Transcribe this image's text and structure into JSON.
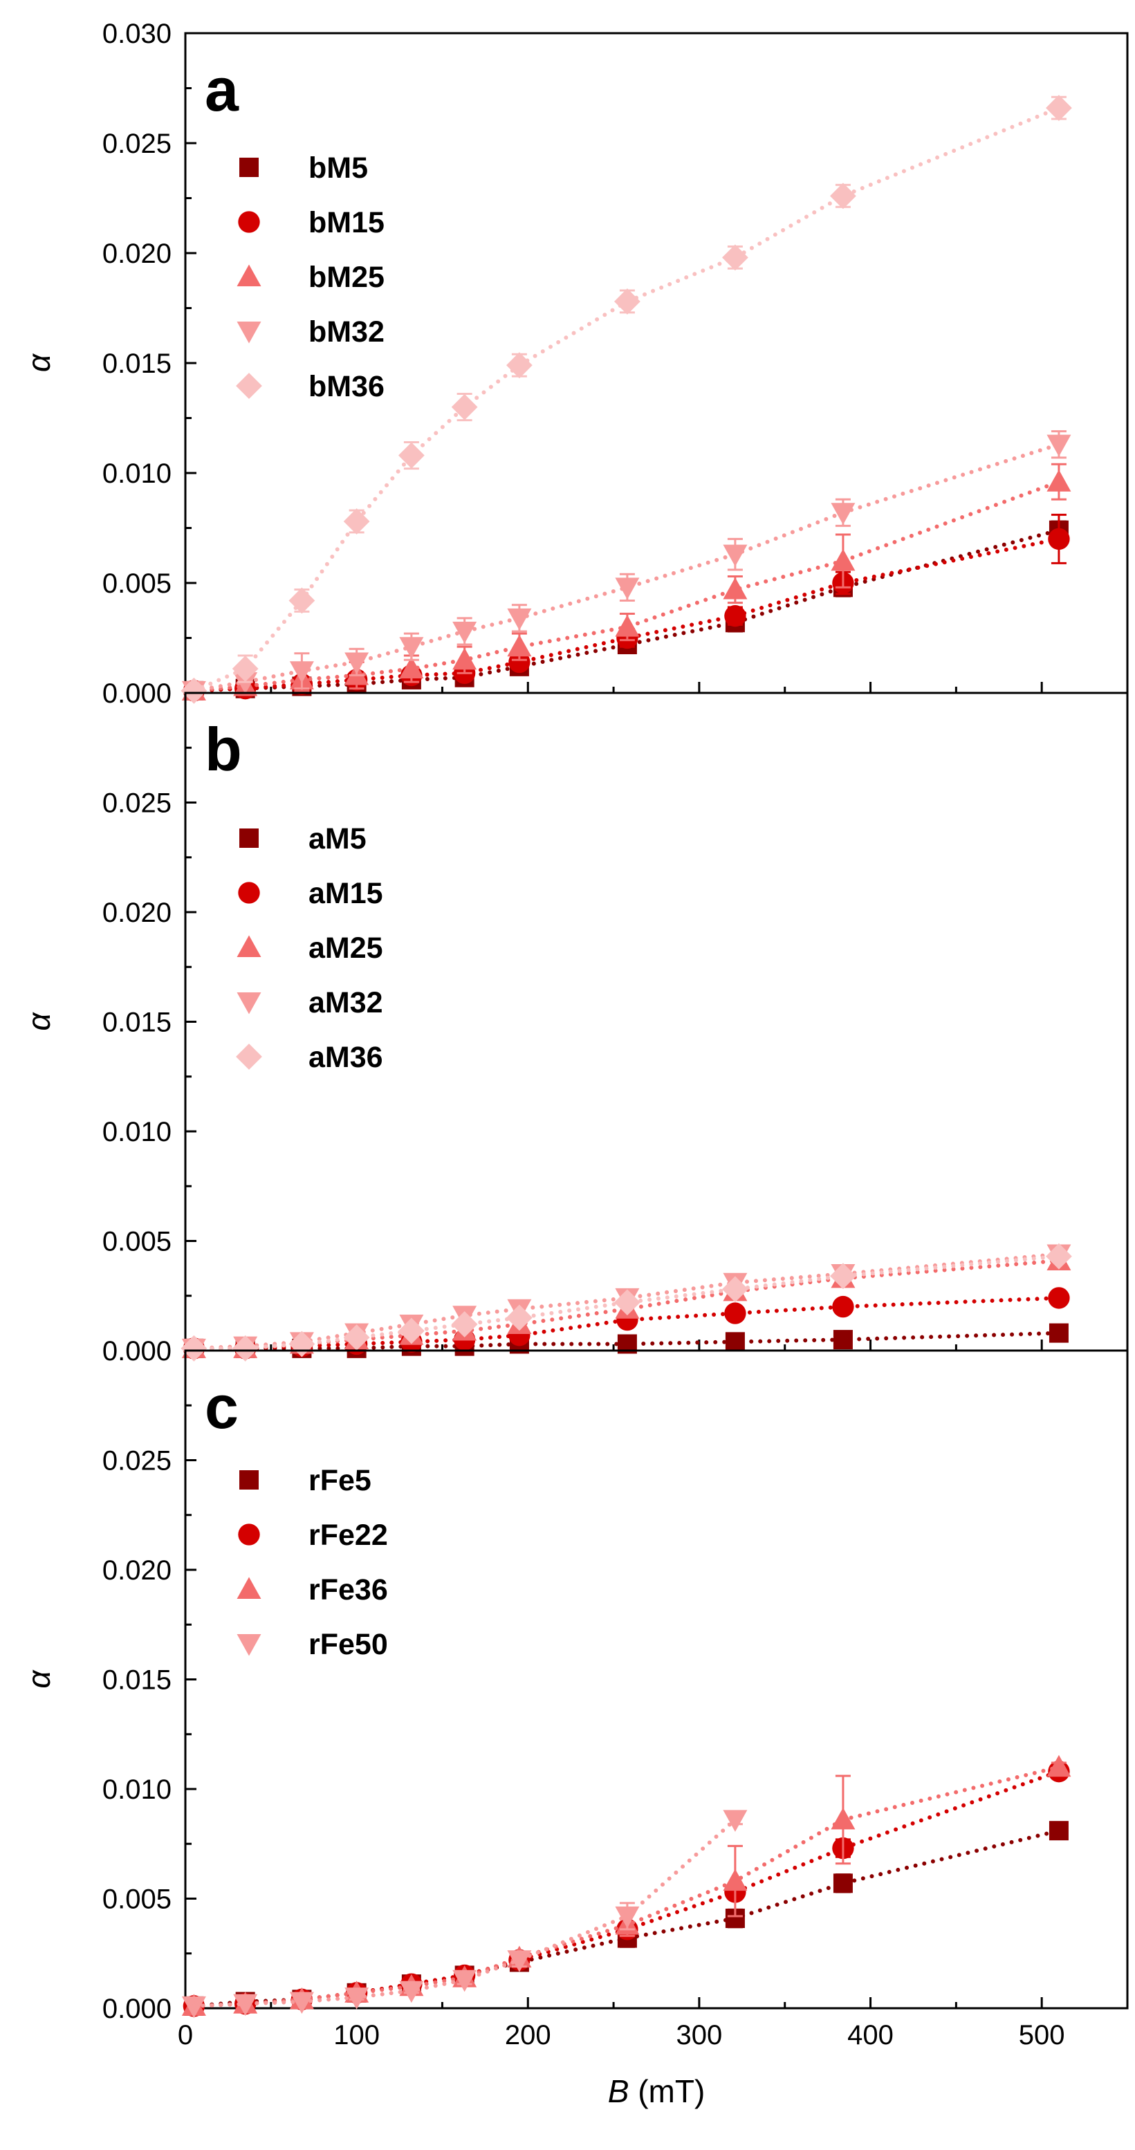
{
  "figure": {
    "xlabel_italic": "B",
    "xlabel_unit": " (mT)",
    "ylabel": "α",
    "xlim": [
      0,
      550
    ],
    "ylim": [
      0,
      0.03
    ],
    "x_ticks": [
      0,
      100,
      200,
      300,
      400,
      500
    ],
    "x_tick_labels": [
      "0",
      "100",
      "200",
      "300",
      "400",
      "500"
    ],
    "y_ticks": [
      0,
      0.005,
      0.01,
      0.015,
      0.02,
      0.025,
      0.03
    ],
    "y_tick_labels": [
      "0.000",
      "0.005",
      "0.010",
      "0.015",
      "0.020",
      "0.025",
      "0.030"
    ]
  },
  "colors": {
    "dark_red": "#8b0000",
    "red": "#d40000",
    "salmon": "#f36b6b",
    "pink": "#f79a9a",
    "light_pink": "#f9c0c0"
  },
  "chart_data": [
    {
      "type": "scatter",
      "panel_label": "a",
      "title": "",
      "xlabel": "",
      "ylabel": "α",
      "show_x_tick_labels": false,
      "show_top_y_tick": true,
      "series": [
        {
          "name": "bM5",
          "marker": "square",
          "color": "#8b0000",
          "x": [
            5,
            35,
            68,
            100,
            132,
            163,
            195,
            258,
            321,
            384,
            510
          ],
          "y": [
            0.0001,
            0.0002,
            0.0003,
            0.0004,
            0.0006,
            0.0007,
            0.0012,
            0.0022,
            0.0032,
            0.0048,
            0.0074
          ],
          "err": [
            0.0001,
            0.0001,
            0.0002,
            0.0002,
            0.0003,
            0.0003,
            0.0003,
            0.0003,
            0.0004,
            0.0004,
            0.0004
          ]
        },
        {
          "name": "bM15",
          "marker": "circle",
          "color": "#d40000",
          "x": [
            5,
            35,
            68,
            100,
            132,
            163,
            195,
            258,
            321,
            384,
            510
          ],
          "y": [
            0.0001,
            0.0002,
            0.0004,
            0.0006,
            0.0008,
            0.0009,
            0.0014,
            0.0025,
            0.0035,
            0.005,
            0.007
          ],
          "err": [
            0.0001,
            0.0002,
            0.0002,
            0.0002,
            0.0003,
            0.0003,
            0.0003,
            0.0004,
            0.0004,
            0.0005,
            0.0011
          ]
        },
        {
          "name": "bM25",
          "marker": "triangle-up",
          "color": "#f36b6b",
          "x": [
            5,
            35,
            68,
            100,
            132,
            163,
            195,
            258,
            321,
            384,
            510
          ],
          "y": [
            0.0001,
            0.0003,
            0.0006,
            0.0008,
            0.0011,
            0.0015,
            0.0021,
            0.003,
            0.0047,
            0.006,
            0.0096
          ],
          "err": [
            0.0001,
            0.0003,
            0.0005,
            0.0006,
            0.0006,
            0.0006,
            0.0006,
            0.0006,
            0.0006,
            0.0012,
            0.0008
          ]
        },
        {
          "name": "bM32",
          "marker": "triangle-down",
          "color": "#f79a9a",
          "x": [
            5,
            35,
            68,
            100,
            132,
            163,
            195,
            258,
            321,
            384,
            510
          ],
          "y": [
            0.0001,
            0.0005,
            0.001,
            0.0014,
            0.0021,
            0.0028,
            0.0034,
            0.0048,
            0.0063,
            0.0082,
            0.0113
          ],
          "err": [
            0.0001,
            0.0005,
            0.0008,
            0.0006,
            0.0006,
            0.0006,
            0.0006,
            0.0006,
            0.0007,
            0.0006,
            0.0006
          ]
        },
        {
          "name": "bM36",
          "marker": "diamond",
          "color": "#f9c0c0",
          "x": [
            5,
            35,
            68,
            100,
            132,
            163,
            195,
            258,
            321,
            384,
            510
          ],
          "y": [
            0.0001,
            0.0011,
            0.0042,
            0.0078,
            0.0108,
            0.013,
            0.0149,
            0.0178,
            0.0198,
            0.0226,
            0.0266
          ],
          "err": [
            0.0001,
            0.0006,
            0.0005,
            0.0005,
            0.0006,
            0.0006,
            0.0005,
            0.0005,
            0.0005,
            0.0005,
            0.0005
          ]
        }
      ]
    },
    {
      "type": "scatter",
      "panel_label": "b",
      "title": "",
      "xlabel": "",
      "ylabel": "α",
      "show_x_tick_labels": false,
      "show_top_y_tick": false,
      "series": [
        {
          "name": "aM5",
          "marker": "square",
          "color": "#8b0000",
          "x": [
            5,
            35,
            68,
            100,
            132,
            163,
            195,
            258,
            321,
            384,
            510
          ],
          "y": [
            0.0001,
            0.0001,
            0.0001,
            0.0001,
            0.0002,
            0.0002,
            0.0003,
            0.0003,
            0.0004,
            0.0005,
            0.0008
          ],
          "err": [
            0,
            0,
            0,
            0,
            0,
            0,
            0,
            0,
            0,
            0,
            0
          ]
        },
        {
          "name": "aM15",
          "marker": "circle",
          "color": "#d40000",
          "x": [
            5,
            35,
            68,
            100,
            132,
            163,
            195,
            258,
            321,
            384,
            510
          ],
          "y": [
            0.0001,
            0.0001,
            0.0002,
            0.0003,
            0.0004,
            0.0005,
            0.0007,
            0.0014,
            0.0017,
            0.002,
            0.0024
          ],
          "err": [
            0,
            0,
            0,
            0,
            0,
            0,
            0,
            0,
            0,
            0,
            0
          ]
        },
        {
          "name": "aM25",
          "marker": "triangle-up",
          "color": "#f36b6b",
          "x": [
            5,
            35,
            68,
            100,
            132,
            163,
            195,
            258,
            321,
            384,
            510
          ],
          "y": [
            0.0001,
            0.0001,
            0.0003,
            0.0005,
            0.0007,
            0.0009,
            0.0012,
            0.0019,
            0.0027,
            0.0033,
            0.0041
          ],
          "err": [
            0,
            0,
            0,
            0.0002,
            0.0002,
            0.0002,
            0.0002,
            0.0002,
            0.0002,
            0.0002,
            0.0002
          ]
        },
        {
          "name": "aM32",
          "marker": "triangle-down",
          "color": "#f79a9a",
          "x": [
            5,
            35,
            68,
            100,
            132,
            163,
            195,
            258,
            321,
            384,
            510
          ],
          "y": [
            0.0001,
            0.0002,
            0.0004,
            0.0008,
            0.0012,
            0.0016,
            0.0019,
            0.0024,
            0.0031,
            0.0035,
            0.0044
          ],
          "err": [
            0,
            0,
            0.0002,
            0.0002,
            0.0002,
            0.0002,
            0.0002,
            0.0002,
            0.0003,
            0.0003,
            0.0003
          ]
        },
        {
          "name": "aM36",
          "marker": "diamond",
          "color": "#f9c0c0",
          "x": [
            5,
            35,
            68,
            100,
            132,
            163,
            195,
            258,
            321,
            384,
            510
          ],
          "y": [
            0.0001,
            0.0001,
            0.0003,
            0.0006,
            0.0009,
            0.0012,
            0.0015,
            0.0022,
            0.0028,
            0.0034,
            0.0043
          ],
          "err": [
            0,
            0,
            0.0002,
            0.0002,
            0.0002,
            0.0002,
            0.0002,
            0.0002,
            0.0002,
            0.0002,
            0.0002
          ]
        }
      ]
    },
    {
      "type": "scatter",
      "panel_label": "c",
      "title": "",
      "xlabel": "B (mT)",
      "ylabel": "α",
      "show_x_tick_labels": true,
      "show_top_y_tick": false,
      "series": [
        {
          "name": "rFe5",
          "marker": "square",
          "color": "#8b0000",
          "x": [
            5,
            35,
            68,
            100,
            132,
            163,
            195,
            258,
            321,
            384,
            510
          ],
          "y": [
            0.0001,
            0.0003,
            0.0004,
            0.0007,
            0.0011,
            0.0015,
            0.0021,
            0.0032,
            0.0041,
            0.0057,
            0.0081
          ],
          "err": [
            0,
            0,
            0.0001,
            0.0002,
            0.0002,
            0.0002,
            0.0003,
            0.0004,
            0.0004,
            0.0004,
            0.0002
          ]
        },
        {
          "name": "rFe22",
          "marker": "circle",
          "color": "#d40000",
          "x": [
            5,
            35,
            68,
            100,
            132,
            163,
            195,
            258,
            321,
            384,
            510
          ],
          "y": [
            0.0001,
            0.0002,
            0.0004,
            0.0007,
            0.0011,
            0.0015,
            0.0022,
            0.0036,
            0.0053,
            0.0073,
            0.0108
          ],
          "err": [
            0,
            0,
            0,
            0.0001,
            0.0001,
            0.0002,
            0.0002,
            0.0003,
            0.0003,
            0.0004,
            0.0002
          ]
        },
        {
          "name": "rFe36",
          "marker": "triangle-up",
          "color": "#f36b6b",
          "x": [
            5,
            35,
            68,
            100,
            132,
            163,
            195,
            258,
            321,
            384,
            510
          ],
          "y": [
            0.0001,
            0.0002,
            0.0004,
            0.0007,
            0.001,
            0.0014,
            0.0023,
            0.0038,
            0.0058,
            0.0086,
            0.011
          ],
          "err": [
            0,
            0,
            0,
            0.0001,
            0.0001,
            0.0002,
            0.0002,
            0.0005,
            0.0016,
            0.002,
            0.0002
          ]
        },
        {
          "name": "rFe50",
          "marker": "triangle-down",
          "color": "#f79a9a",
          "x": [
            5,
            35,
            68,
            100,
            132,
            163,
            195,
            258,
            321
          ],
          "y": [
            0.0001,
            0.0002,
            0.0003,
            0.0005,
            0.0008,
            0.0013,
            0.0022,
            0.0042,
            0.0086
          ],
          "err": [
            0,
            0,
            0,
            0.0001,
            0.0001,
            0.0002,
            0.0003,
            0.0006,
            0.0002
          ]
        }
      ]
    }
  ]
}
